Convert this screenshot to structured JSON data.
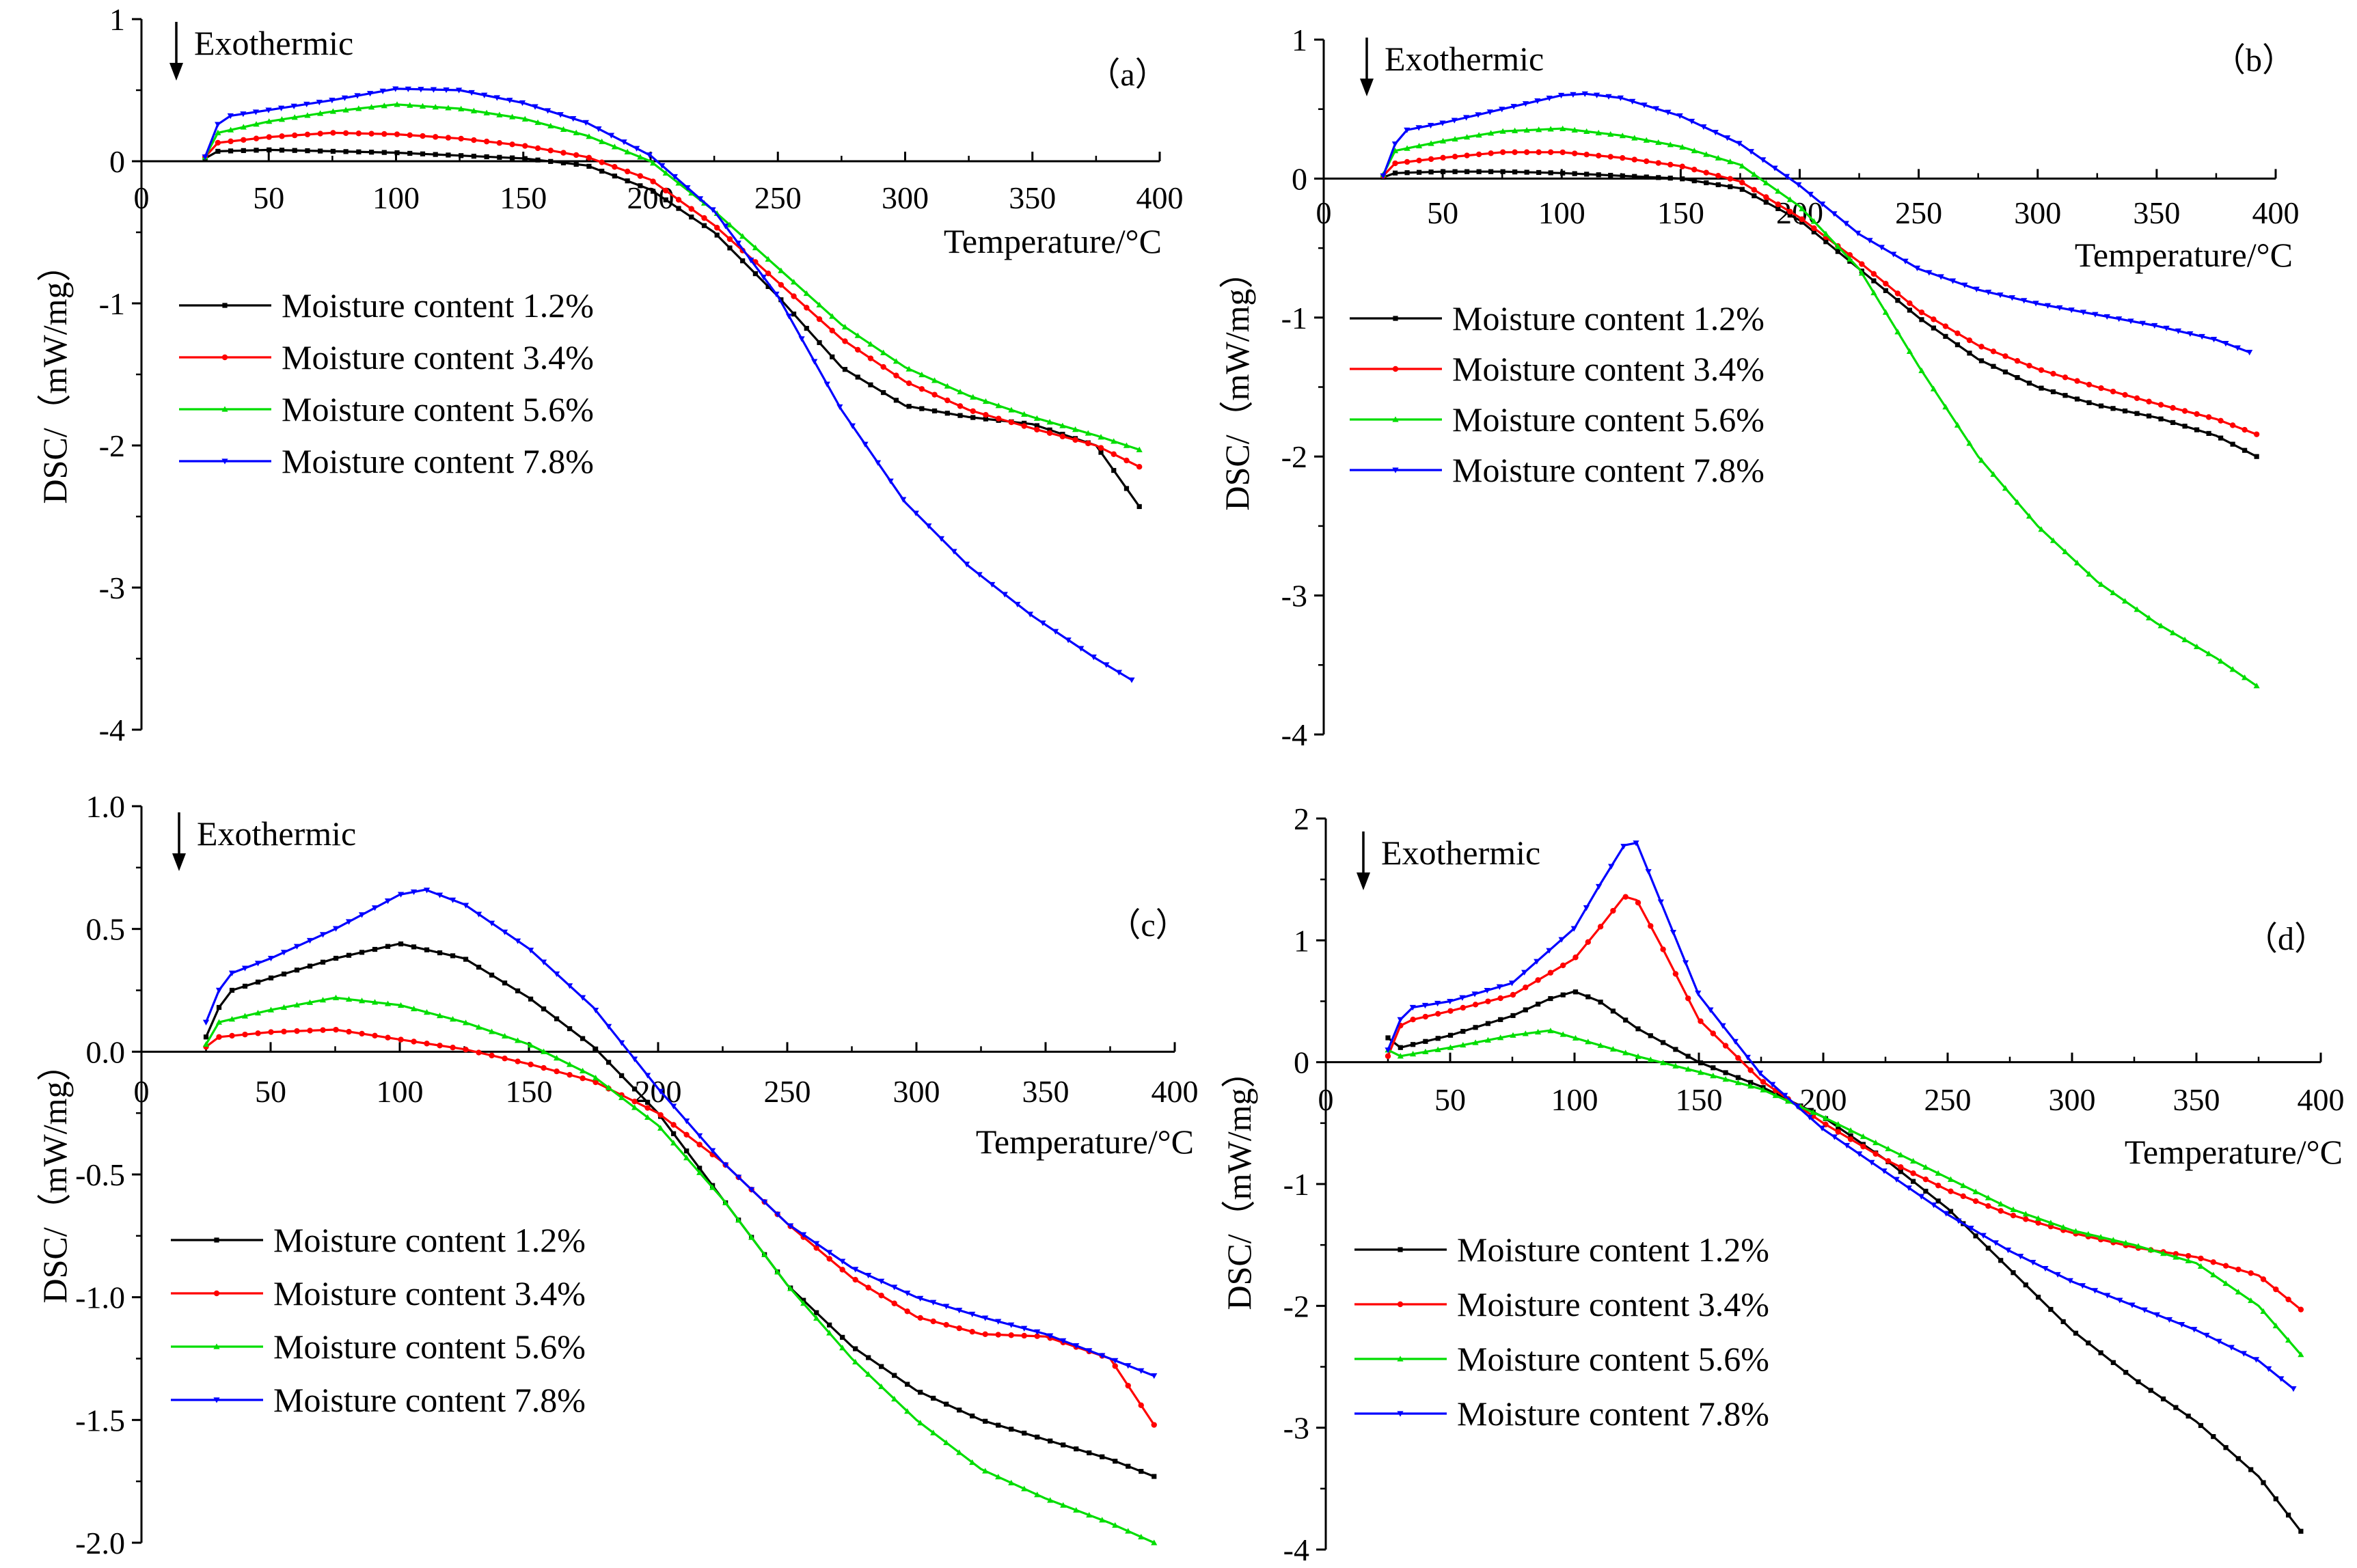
{
  "series_colors": [
    "#000000",
    "#ff0000",
    "#00dd00",
    "#0000ff"
  ],
  "chart_data": [
    {
      "type": "line",
      "panel_label": "（a）",
      "annotation": "Exothermic",
      "xlabel": "Temperature/°C",
      "ylabel": "DSC/（mW/mg）",
      "xlim": [
        0,
        400
      ],
      "ylim": [
        -4,
        1
      ],
      "xticks": [
        0,
        50,
        100,
        150,
        200,
        250,
        300,
        350,
        400
      ],
      "yticks": [
        -4,
        -3,
        -2,
        -1,
        0,
        1
      ],
      "ytick_labels": [
        "-4",
        "-3",
        "-2",
        "-1",
        "0",
        "1"
      ],
      "series": [
        {
          "name": "Moisture content 1.2%",
          "x": [
            25,
            30,
            50,
            75,
            100,
            125,
            150,
            175,
            200,
            225,
            250,
            275,
            300,
            325,
            350,
            375,
            392
          ],
          "y": [
            0.02,
            0.07,
            0.08,
            0.07,
            0.06,
            0.04,
            0.02,
            -0.03,
            -0.2,
            -0.5,
            -0.95,
            -1.45,
            -1.72,
            -1.8,
            -1.85,
            -2.0,
            -2.43
          ]
        },
        {
          "name": "Moisture content 3.4%",
          "x": [
            25,
            30,
            50,
            75,
            100,
            125,
            150,
            175,
            200,
            225,
            250,
            275,
            300,
            325,
            350,
            375,
            392
          ],
          "y": [
            0.03,
            0.13,
            0.17,
            0.2,
            0.19,
            0.16,
            0.11,
            0.03,
            -0.13,
            -0.45,
            -0.85,
            -1.25,
            -1.55,
            -1.75,
            -1.88,
            -2.0,
            -2.15
          ]
        },
        {
          "name": "Moisture content 5.6%",
          "x": [
            25,
            30,
            50,
            75,
            100,
            125,
            150,
            175,
            200,
            225,
            250,
            275,
            300,
            325,
            350,
            375,
            392
          ],
          "y": [
            0.03,
            0.2,
            0.28,
            0.35,
            0.4,
            0.37,
            0.3,
            0.18,
            0.0,
            -0.35,
            -0.75,
            -1.15,
            -1.45,
            -1.65,
            -1.8,
            -1.93,
            -2.03
          ]
        },
        {
          "name": "Moisture content 7.8%",
          "x": [
            25,
            30,
            35,
            50,
            75,
            100,
            125,
            150,
            175,
            200,
            225,
            250,
            275,
            300,
            325,
            350,
            375,
            389
          ],
          "y": [
            0.03,
            0.26,
            0.32,
            0.36,
            0.43,
            0.51,
            0.5,
            0.41,
            0.27,
            0.04,
            -0.35,
            -0.95,
            -1.75,
            -2.4,
            -2.85,
            -3.2,
            -3.5,
            -3.65
          ]
        }
      ]
    },
    {
      "type": "line",
      "panel_label": "（b）",
      "annotation": "Exothermic",
      "xlabel": "Temperature/°C",
      "ylabel": "DSC/（mW/mg）",
      "xlim": [
        0,
        400
      ],
      "ylim": [
        -4,
        1
      ],
      "xticks": [
        0,
        50,
        100,
        150,
        200,
        250,
        300,
        350,
        400
      ],
      "yticks": [
        -4,
        -3,
        -2,
        -1,
        0,
        1
      ],
      "ytick_labels": [
        "-4",
        "-3",
        "-2",
        "-1",
        "0",
        "1"
      ],
      "series": [
        {
          "name": "Moisture content 1.2%",
          "x": [
            25,
            30,
            50,
            75,
            100,
            125,
            150,
            175,
            200,
            225,
            250,
            275,
            300,
            325,
            350,
            375,
            392
          ],
          "y": [
            0.01,
            0.04,
            0.05,
            0.05,
            0.04,
            0.02,
            0.0,
            -0.07,
            -0.3,
            -0.65,
            -1.0,
            -1.3,
            -1.5,
            -1.63,
            -1.72,
            -1.85,
            -2.0
          ]
        },
        {
          "name": "Moisture content 3.4%",
          "x": [
            25,
            30,
            50,
            75,
            100,
            125,
            150,
            175,
            200,
            225,
            250,
            275,
            300,
            325,
            350,
            375,
            392
          ],
          "y": [
            0.02,
            0.11,
            0.15,
            0.19,
            0.19,
            0.15,
            0.09,
            -0.02,
            -0.28,
            -0.6,
            -0.95,
            -1.2,
            -1.37,
            -1.5,
            -1.62,
            -1.73,
            -1.84
          ]
        },
        {
          "name": "Moisture content 5.6%",
          "x": [
            25,
            30,
            50,
            75,
            100,
            125,
            150,
            175,
            200,
            225,
            250,
            275,
            300,
            325,
            350,
            375,
            392
          ],
          "y": [
            0.03,
            0.2,
            0.27,
            0.34,
            0.36,
            0.31,
            0.23,
            0.1,
            -0.2,
            -0.65,
            -1.35,
            -2.0,
            -2.5,
            -2.9,
            -3.2,
            -3.45,
            -3.65
          ]
        },
        {
          "name": "Moisture content 7.8%",
          "x": [
            25,
            30,
            35,
            50,
            75,
            100,
            110,
            125,
            150,
            175,
            200,
            225,
            250,
            275,
            300,
            325,
            350,
            375,
            389
          ],
          "y": [
            0.02,
            0.25,
            0.35,
            0.4,
            0.5,
            0.6,
            0.61,
            0.58,
            0.45,
            0.25,
            -0.05,
            -0.4,
            -0.65,
            -0.8,
            -0.9,
            -0.98,
            -1.06,
            -1.16,
            -1.25
          ]
        }
      ]
    },
    {
      "type": "line",
      "panel_label": "（c）",
      "annotation": "Exothermic",
      "xlabel": "Temperature/°C",
      "ylabel": "DSC/（mW/mg）",
      "xlim": [
        0,
        400
      ],
      "ylim": [
        -2,
        1
      ],
      "xticks": [
        0,
        50,
        100,
        150,
        200,
        250,
        300,
        350,
        400
      ],
      "yticks": [
        -2,
        -1.5,
        -1,
        -0.5,
        0,
        0.5,
        1
      ],
      "ytick_labels": [
        "-2.0",
        "-1.5",
        "-1.0",
        "-0.5",
        "0.0",
        "0.5",
        "1.0"
      ],
      "series": [
        {
          "name": "Moisture content 1.2%",
          "x": [
            25,
            30,
            35,
            50,
            75,
            100,
            125,
            150,
            175,
            200,
            225,
            250,
            275,
            300,
            325,
            350,
            375,
            392
          ],
          "y": [
            0.06,
            0.18,
            0.25,
            0.3,
            0.38,
            0.44,
            0.38,
            0.22,
            0.02,
            -0.25,
            -0.6,
            -0.95,
            -1.2,
            -1.38,
            -1.5,
            -1.58,
            -1.66,
            -1.73
          ]
        },
        {
          "name": "Moisture content 3.4%",
          "x": [
            25,
            30,
            50,
            75,
            100,
            125,
            150,
            175,
            200,
            225,
            250,
            275,
            300,
            325,
            350,
            375,
            392
          ],
          "y": [
            0.02,
            0.06,
            0.08,
            0.09,
            0.05,
            0.01,
            -0.05,
            -0.12,
            -0.25,
            -0.45,
            -0.7,
            -0.92,
            -1.08,
            -1.15,
            -1.16,
            -1.25,
            -1.52
          ]
        },
        {
          "name": "Moisture content 5.6%",
          "x": [
            25,
            30,
            50,
            75,
            100,
            125,
            150,
            175,
            200,
            225,
            250,
            275,
            300,
            325,
            350,
            375,
            392
          ],
          "y": [
            0.03,
            0.12,
            0.17,
            0.22,
            0.19,
            0.12,
            0.03,
            -0.1,
            -0.3,
            -0.6,
            -0.95,
            -1.25,
            -1.5,
            -1.7,
            -1.82,
            -1.92,
            -2.0
          ]
        },
        {
          "name": "Moisture content 7.8%",
          "x": [
            25,
            30,
            35,
            50,
            75,
            100,
            110,
            125,
            150,
            175,
            200,
            225,
            250,
            275,
            300,
            325,
            350,
            375,
            392
          ],
          "y": [
            0.12,
            0.25,
            0.32,
            0.38,
            0.5,
            0.64,
            0.66,
            0.6,
            0.42,
            0.18,
            -0.15,
            -0.45,
            -0.7,
            -0.88,
            -1.0,
            -1.08,
            -1.15,
            -1.25,
            -1.32
          ]
        }
      ]
    },
    {
      "type": "line",
      "panel_label": "（d）",
      "annotation": "Exothermic",
      "xlabel": "Temperature/°C",
      "ylabel": "DSC/（mW/mg）",
      "xlim": [
        0,
        400
      ],
      "ylim": [
        -4,
        2
      ],
      "xticks": [
        0,
        50,
        100,
        150,
        200,
        250,
        300,
        350,
        400
      ],
      "yticks": [
        -4,
        -3,
        -2,
        -1,
        0,
        1,
        2
      ],
      "ytick_labels": [
        "-4",
        "-3",
        "-2",
        "-1",
        "0",
        "1",
        "2"
      ],
      "series": [
        {
          "name": "Moisture content 1.2%",
          "x": [
            25,
            30,
            50,
            75,
            90,
            100,
            110,
            125,
            150,
            175,
            200,
            225,
            250,
            275,
            300,
            325,
            350,
            375,
            392
          ],
          "y": [
            0.2,
            0.12,
            0.22,
            0.38,
            0.52,
            0.58,
            0.5,
            0.28,
            0.0,
            -0.2,
            -0.45,
            -0.8,
            -1.2,
            -1.7,
            -2.2,
            -2.6,
            -2.95,
            -3.4,
            -3.85
          ]
        },
        {
          "name": "Moisture content 3.4%",
          "x": [
            25,
            30,
            35,
            50,
            75,
            100,
            110,
            120,
            125,
            135,
            150,
            175,
            200,
            225,
            250,
            275,
            300,
            325,
            350,
            375,
            392
          ],
          "y": [
            0.05,
            0.3,
            0.35,
            0.42,
            0.55,
            0.85,
            1.1,
            1.36,
            1.33,
            0.95,
            0.35,
            -0.15,
            -0.5,
            -0.8,
            -1.05,
            -1.25,
            -1.4,
            -1.52,
            -1.6,
            -1.75,
            -2.03
          ]
        },
        {
          "name": "Moisture content 5.6%",
          "x": [
            25,
            30,
            50,
            75,
            90,
            100,
            125,
            150,
            175,
            200,
            225,
            250,
            275,
            300,
            325,
            350,
            375,
            392
          ],
          "y": [
            0.1,
            0.05,
            0.12,
            0.22,
            0.26,
            0.2,
            0.05,
            -0.08,
            -0.22,
            -0.45,
            -0.7,
            -0.95,
            -1.2,
            -1.38,
            -1.5,
            -1.65,
            -2.0,
            -2.4
          ]
        },
        {
          "name": "Moisture content 7.8%",
          "x": [
            25,
            30,
            35,
            50,
            75,
            100,
            110,
            120,
            125,
            135,
            150,
            175,
            200,
            225,
            250,
            275,
            300,
            325,
            350,
            375,
            389
          ],
          "y": [
            0.1,
            0.35,
            0.45,
            0.5,
            0.65,
            1.1,
            1.45,
            1.78,
            1.8,
            1.3,
            0.55,
            -0.1,
            -0.55,
            -0.9,
            -1.25,
            -1.55,
            -1.8,
            -2.0,
            -2.2,
            -2.45,
            -2.68
          ]
        }
      ]
    }
  ]
}
